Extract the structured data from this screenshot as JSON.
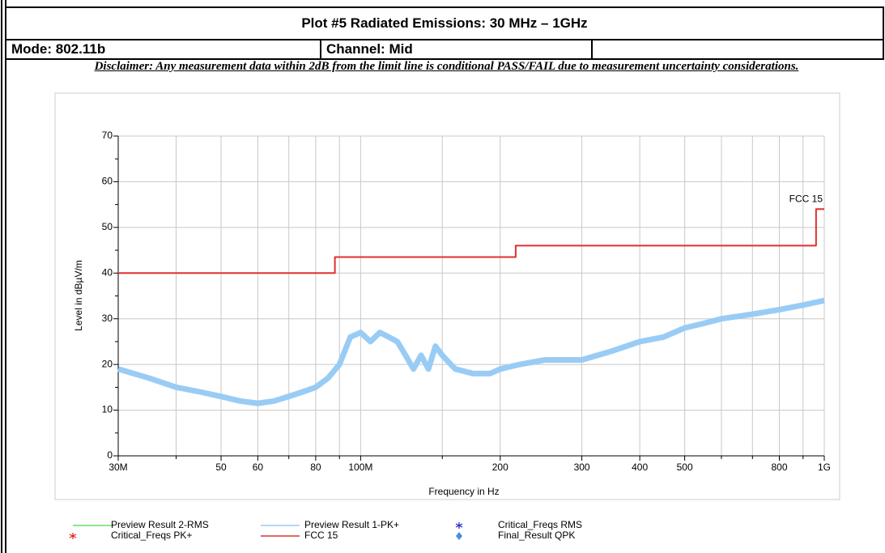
{
  "header": {
    "title": "Plot #5 Radiated Emissions: 30 MHz – 1GHz",
    "mode": "Mode: 802.11b",
    "channel": "Channel: Mid"
  },
  "disclaimer": "Disclaimer: Any measurement data within 2dB from the limit line is conditional PASS/FAIL due to measurement uncertainty considerations.",
  "chart_data": {
    "type": "line",
    "xlabel": "Frequency in Hz",
    "ylabel": "Level in dBµV/m",
    "xscale": "log",
    "grid": true,
    "xlim": [
      30000000,
      1000000000
    ],
    "ylim": [
      0,
      70
    ],
    "xticks": [
      {
        "value": 30000000,
        "label": "30M"
      },
      {
        "value": 50000000,
        "label": "50"
      },
      {
        "value": 60000000,
        "label": "60"
      },
      {
        "value": 80000000,
        "label": "80"
      },
      {
        "value": 100000000,
        "label": "100M"
      },
      {
        "value": 200000000,
        "label": "200"
      },
      {
        "value": 300000000,
        "label": "300"
      },
      {
        "value": 400000000,
        "label": "400"
      },
      {
        "value": 500000000,
        "label": "500"
      },
      {
        "value": 800000000,
        "label": "800"
      },
      {
        "value": 1000000000,
        "label": "1G"
      }
    ],
    "xminor": [
      40000000,
      70000000,
      90000000,
      150000000,
      600000000,
      700000000,
      900000000
    ],
    "yticks": [
      0,
      10,
      20,
      30,
      40,
      50,
      60,
      70
    ],
    "yminor": [
      5,
      15,
      25,
      35,
      45,
      55,
      65
    ],
    "annotation": "FCC 15",
    "series": [
      {
        "name": "Preview Result 2-RMS",
        "color": "#66dd66",
        "marker": "line",
        "x": [],
        "values": []
      },
      {
        "name": "Preview Result 1-PK+",
        "color": "#99ccf5",
        "marker": "line",
        "x": [
          30000000,
          35000000,
          40000000,
          45000000,
          50000000,
          55000000,
          60000000,
          65000000,
          70000000,
          75000000,
          80000000,
          85000000,
          90000000,
          95000000,
          100000000,
          105000000,
          110000000,
          115000000,
          120000000,
          125000000,
          130000000,
          135000000,
          140000000,
          145000000,
          150000000,
          160000000,
          175000000,
          190000000,
          200000000,
          220000000,
          250000000,
          280000000,
          300000000,
          350000000,
          400000000,
          450000000,
          500000000,
          550000000,
          600000000,
          700000000,
          800000000,
          900000000,
          1000000000
        ],
        "values": [
          19,
          17,
          15,
          14,
          13,
          12,
          11.5,
          12,
          13,
          14,
          15,
          17,
          20,
          26,
          27,
          25,
          27,
          26,
          25,
          22,
          19,
          22,
          19,
          24,
          22,
          19,
          18,
          18,
          19,
          20,
          21,
          21,
          21,
          23,
          25,
          26,
          28,
          29,
          30,
          31,
          32,
          33,
          34
        ]
      },
      {
        "name": "Critical_Freqs RMS",
        "color": "#2222cc",
        "marker": "star",
        "x": [],
        "values": []
      },
      {
        "name": "Critical_Freqs PK+",
        "color": "#dd2222",
        "marker": "star",
        "x": [],
        "values": []
      },
      {
        "name": "FCC 15",
        "color": "#e03030",
        "marker": "line",
        "x": [
          30000000,
          88000000,
          88000000,
          216000000,
          216000000,
          960000000,
          960000000,
          1000000000
        ],
        "values": [
          40,
          40,
          43.5,
          43.5,
          46,
          46,
          54,
          54
        ]
      },
      {
        "name": "Final_Result QPK",
        "color": "#4a90d9",
        "marker": "diamond",
        "x": [],
        "values": []
      }
    ]
  }
}
